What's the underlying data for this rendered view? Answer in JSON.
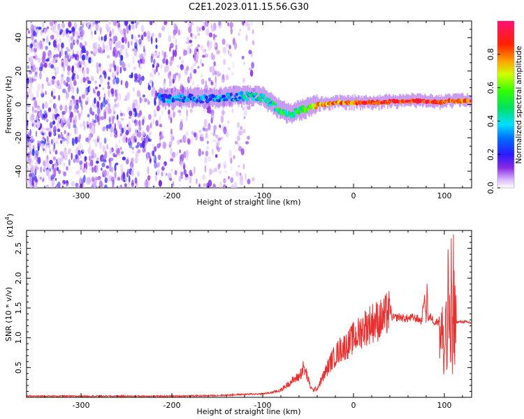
{
  "title": "C2E1.2023.011.15.56.G30",
  "chart_data": [
    {
      "type": "heatmap",
      "xlabel": "Height of straight line (km)",
      "ylabel": "Frequency (Hz)",
      "xlim": [
        -360,
        130
      ],
      "ylim": [
        -50,
        50
      ],
      "x_ticks": [
        -300,
        -200,
        -100,
        0,
        100
      ],
      "y_ticks": [
        -40,
        -20,
        0,
        20,
        40
      ],
      "colorbar": {
        "label": "Normalized spectral amplitude",
        "range": [
          0,
          1
        ],
        "ticks": [
          0.0,
          0.2,
          0.4,
          0.6,
          0.8
        ]
      },
      "noise_region_x": [
        -360,
        -110
      ],
      "signal_ridge": [
        {
          "x": -215,
          "y": 4,
          "amp": 0.22
        },
        {
          "x": -200,
          "y": 3,
          "amp": 0.3
        },
        {
          "x": -180,
          "y": 4,
          "amp": 0.28
        },
        {
          "x": -160,
          "y": 3,
          "amp": 0.3
        },
        {
          "x": -140,
          "y": 4,
          "amp": 0.32
        },
        {
          "x": -120,
          "y": 5,
          "amp": 0.36
        },
        {
          "x": -100,
          "y": 4,
          "amp": 0.4
        },
        {
          "x": -90,
          "y": 0,
          "amp": 0.42
        },
        {
          "x": -80,
          "y": -4,
          "amp": 0.48
        },
        {
          "x": -70,
          "y": -6,
          "amp": 0.46
        },
        {
          "x": -60,
          "y": -4,
          "amp": 0.5
        },
        {
          "x": -50,
          "y": -2,
          "amp": 0.6
        },
        {
          "x": -40,
          "y": 0,
          "amp": 0.7
        },
        {
          "x": -30,
          "y": 0,
          "amp": 0.75
        },
        {
          "x": -20,
          "y": 1,
          "amp": 0.8
        },
        {
          "x": 0,
          "y": 1,
          "amp": 0.82
        },
        {
          "x": 25,
          "y": 1,
          "amp": 0.85
        },
        {
          "x": 50,
          "y": 2,
          "amp": 0.88
        },
        {
          "x": 75,
          "y": 2,
          "amp": 0.88
        },
        {
          "x": 95,
          "y": 1,
          "amp": 0.86
        },
        {
          "x": 105,
          "y": 2,
          "amp": 0.82
        },
        {
          "x": 130,
          "y": 2,
          "amp": 0.85
        }
      ]
    },
    {
      "type": "line",
      "xlabel": "Height of straight line (km)",
      "ylabel": "SNR (10 * v/v)",
      "y_multiplier_label": "(x10",
      "y_multiplier_exponent": "4",
      "xlim": [
        -360,
        130
      ],
      "ylim": [
        0,
        28000
      ],
      "x_ticks": [
        -300,
        -200,
        -100,
        0,
        100
      ],
      "y_ticks": [
        5000,
        10000,
        15000,
        20000,
        25000
      ],
      "y_tick_labels": [
        "0.5",
        "1.0",
        "1.5",
        "2.0",
        "2.5"
      ],
      "line_color": "#e83030",
      "series": [
        {
          "x": [
            -360,
            -300,
            -250,
            -200,
            -150,
            -120,
            -100,
            -90,
            -80,
            -70,
            -65,
            -60,
            -55,
            -52,
            -50,
            -48,
            -45,
            -40,
            -35,
            -30,
            -25,
            -20,
            -15,
            -10,
            -5,
            0,
            5,
            10,
            15,
            20,
            25,
            30,
            35,
            38,
            40,
            41,
            42,
            45,
            50,
            55,
            60,
            65,
            70,
            75,
            78,
            80,
            81,
            82,
            85,
            90,
            95,
            98,
            100,
            102,
            103,
            104,
            105,
            106,
            107,
            108,
            109,
            110,
            111,
            112,
            113,
            115,
            120,
            125,
            130
          ],
          "y": [
            200,
            200,
            200,
            200,
            300,
            500,
            600,
            800,
            1200,
            2500,
            3000,
            3500,
            5000,
            4000,
            3000,
            2000,
            1200,
            1500,
            3000,
            4500,
            6000,
            7000,
            8000,
            8500,
            9000,
            10000,
            10500,
            11500,
            12000,
            12500,
            12800,
            13000,
            13500,
            14500,
            13800,
            15000,
            13500,
            13300,
            13500,
            13300,
            13200,
            13400,
            13200,
            12800,
            17000,
            13000,
            19000,
            13000,
            13500,
            12500,
            13000,
            10000,
            6000,
            16000,
            2500,
            24000,
            5000,
            21000,
            2000,
            28000,
            3000,
            19000,
            12500,
            12800,
            12700,
            12600,
            12700,
            12600,
            12500
          ]
        }
      ]
    }
  ]
}
